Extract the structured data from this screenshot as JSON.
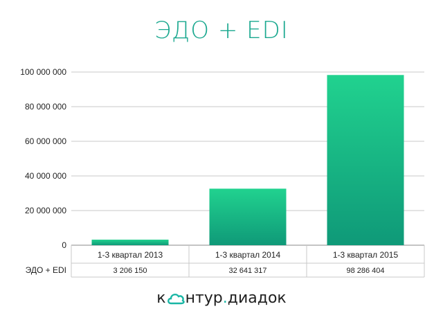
{
  "colors": {
    "title": "#1aa88f",
    "bar_low": "#0f9978",
    "bar_high": "#21d28f",
    "grid": "#c8c8c8",
    "table_border": "#c8c8c8",
    "logo_cloud": "#19b6a5"
  },
  "logo": {
    "part1_a": "к",
    "part1_b": "нтур",
    "dot": ".",
    "part2": "диадок",
    "icon": "cloud-icon"
  },
  "chart_data": {
    "type": "bar",
    "title": "ЭДО + EDI",
    "categories": [
      "1-3 квартал 2013",
      "1-3 квартал 2014",
      "1-3 квартал 2015"
    ],
    "series": [
      {
        "name": "ЭДО + EDI",
        "values": [
          3206150,
          32641317,
          98286404
        ]
      }
    ],
    "value_labels": [
      "3 206 150",
      "32 641 317",
      "98 286 404"
    ],
    "ylim": [
      0,
      100000000
    ],
    "yticks": [
      0,
      20000000,
      40000000,
      60000000,
      80000000,
      100000000
    ],
    "ytick_labels": [
      "0",
      "20 000 000",
      "40 000 000",
      "60 000 000",
      "80 000 000",
      "100 000 000"
    ],
    "grid": true,
    "xlabel": "",
    "ylabel": "",
    "legend": "data-table-row"
  }
}
